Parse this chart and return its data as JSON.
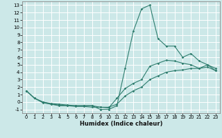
{
  "xlabel": "Humidex (Indice chaleur)",
  "background_color": "#cce8e8",
  "grid_color": "#ffffff",
  "line_color": "#2e7d6e",
  "xlim": [
    -0.5,
    23.5
  ],
  "ylim": [
    -1.5,
    13.5
  ],
  "xticks": [
    0,
    1,
    2,
    3,
    4,
    5,
    6,
    7,
    8,
    9,
    10,
    11,
    12,
    13,
    14,
    15,
    16,
    17,
    18,
    19,
    20,
    21,
    22,
    23
  ],
  "yticks": [
    -1,
    0,
    1,
    2,
    3,
    4,
    5,
    6,
    7,
    8,
    9,
    10,
    11,
    12,
    13
  ],
  "line1_x": [
    0,
    1,
    2,
    3,
    4,
    5,
    6,
    7,
    8,
    9,
    10,
    11,
    12,
    13,
    14,
    15,
    16,
    17,
    18,
    19,
    20,
    21,
    22,
    23
  ],
  "line1_y": [
    1.5,
    0.5,
    0.0,
    -0.3,
    -0.5,
    -0.5,
    -0.5,
    -0.5,
    -0.5,
    -1.0,
    -1.0,
    -0.5,
    4.5,
    9.5,
    12.5,
    13.0,
    8.5,
    7.5,
    7.5,
    6.0,
    6.5,
    5.5,
    5.0,
    4.5
  ],
  "line2_x": [
    0,
    1,
    2,
    3,
    4,
    5,
    6,
    7,
    8,
    9,
    10,
    11,
    12,
    13,
    14,
    15,
    16,
    17,
    18,
    19,
    20,
    21,
    22,
    23
  ],
  "line2_y": [
    1.5,
    0.5,
    0.0,
    -0.2,
    -0.3,
    -0.4,
    -0.5,
    -0.5,
    -0.5,
    -0.7,
    -0.8,
    0.5,
    1.8,
    2.5,
    3.0,
    4.8,
    5.2,
    5.6,
    5.5,
    5.2,
    5.0,
    4.5,
    5.0,
    4.2
  ],
  "line3_x": [
    0,
    1,
    2,
    3,
    4,
    5,
    6,
    7,
    8,
    9,
    10,
    11,
    12,
    13,
    14,
    15,
    16,
    17,
    18,
    19,
    20,
    21,
    22,
    23
  ],
  "line3_y": [
    1.5,
    0.5,
    -0.1,
    -0.3,
    -0.4,
    -0.5,
    -0.6,
    -0.6,
    -0.7,
    -0.7,
    -0.7,
    -0.3,
    0.8,
    1.5,
    2.0,
    3.0,
    3.5,
    4.0,
    4.2,
    4.3,
    4.5,
    4.5,
    4.7,
    4.2
  ]
}
